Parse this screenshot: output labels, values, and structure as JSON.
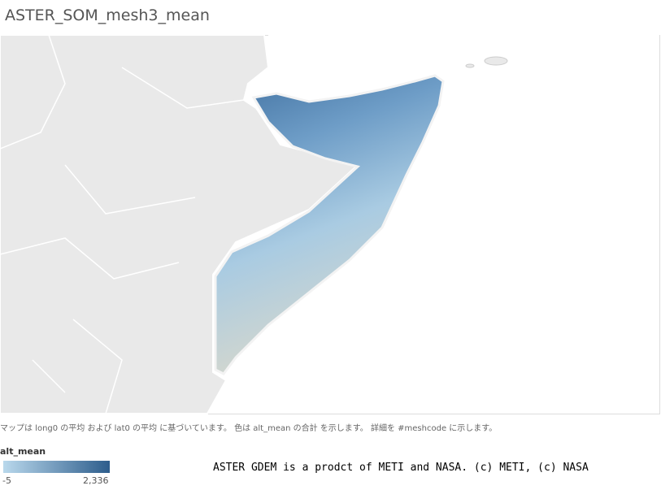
{
  "header": {
    "title": "ASTER_SOM_mesh3_mean"
  },
  "map": {
    "caption": "マップは long0 の平均 および lat0 の平均 に基づいています。 色は alt_mean の合計 を示します。 詳細を #meshcode に示します。"
  },
  "legend": {
    "title": "alt_mean",
    "min_label": "-5",
    "max_label": "2,336"
  },
  "attribution": "ASTER GDEM is a prodct of METI and NASA. (c) METI, (c) NASA"
}
